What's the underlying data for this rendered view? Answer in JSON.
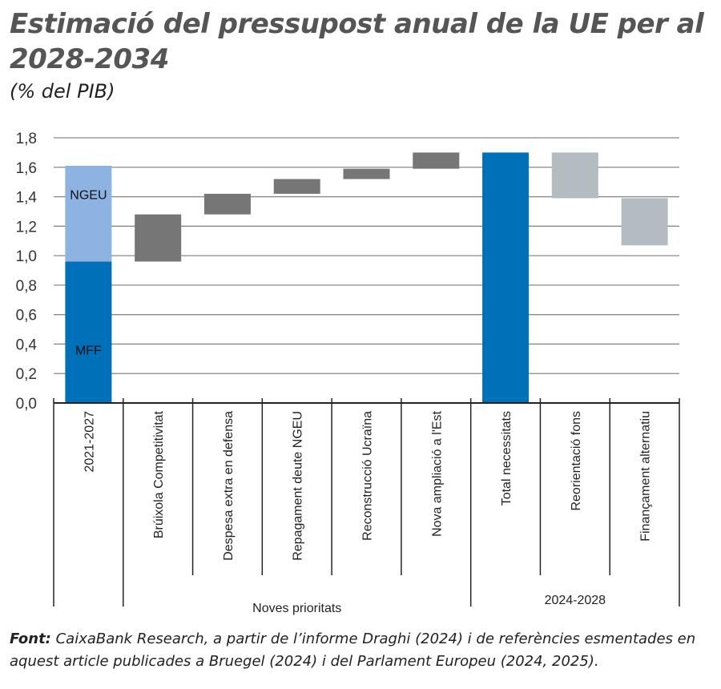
{
  "chart_data": {
    "type": "waterfall",
    "title": "Estimació del pressupost anual de la UE per al 2028-2034",
    "subtitle": "(% del PIB)",
    "ylim": [
      0,
      1.8
    ],
    "yticks": [
      "0,0",
      "0,2",
      "0,4",
      "0,6",
      "0,8",
      "1,0",
      "1,2",
      "1,4",
      "1,6",
      "1,8"
    ],
    "ytick_values": [
      0,
      0.2,
      0.4,
      0.6,
      0.8,
      1.0,
      1.2,
      1.4,
      1.6,
      1.8
    ],
    "grid": true,
    "categories": [
      "2021-2027",
      "Brúixola Competitivitat",
      "Despesa extra en defensa",
      "Repagament deute NGEU",
      "Reconstrucció Ucraïna",
      "Nova ampliació a l'Est",
      "Total necessitats",
      "Reorientació fons",
      "Finançament alternatiu"
    ],
    "bars": [
      {
        "category": "2021-2027",
        "segments": [
          {
            "label": "MFF",
            "from": 0,
            "to": 0.96,
            "color": "#0070b8"
          },
          {
            "label": "NGEU",
            "from": 0.96,
            "to": 1.61,
            "color": "#8db3e2"
          }
        ]
      },
      {
        "category": "Brúixola Competitivitat",
        "from": 0.96,
        "to": 1.28,
        "color": "#767676"
      },
      {
        "category": "Despesa extra en defensa",
        "from": 1.28,
        "to": 1.42,
        "color": "#767676"
      },
      {
        "category": "Repagament deute NGEU",
        "from": 1.42,
        "to": 1.52,
        "color": "#767676"
      },
      {
        "category": "Reconstrucció Ucraïna",
        "from": 1.52,
        "to": 1.59,
        "color": "#767676"
      },
      {
        "category": "Nova ampliació a l'Est",
        "from": 1.59,
        "to": 1.7,
        "color": "#767676"
      },
      {
        "category": "Total necessitats",
        "from": 0,
        "to": 1.7,
        "color": "#0070b8"
      },
      {
        "category": "Reorientació fons",
        "from": 1.39,
        "to": 1.7,
        "color": "#b3bcc0"
      },
      {
        "category": "Finançament alternatiu",
        "from": 1.07,
        "to": 1.39,
        "color": "#b3bcc0"
      }
    ],
    "groups": [
      {
        "label": "Noves prioritats",
        "start": 1,
        "end": 5
      },
      {
        "label": "2024-2028",
        "start": 6,
        "end": 8
      }
    ]
  },
  "source_label": "Font:",
  "source_text": " CaixaBank Research, a partir de l’informe Draghi (2024) i de referències esmentades en aquest article publicades a Bruegel (2024) i del Parlament Europeu (2024, 2025)."
}
